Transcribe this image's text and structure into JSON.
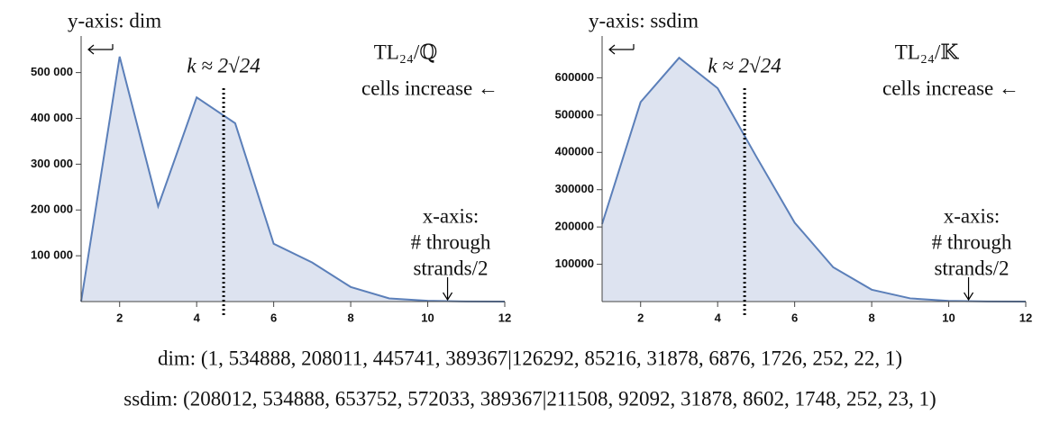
{
  "chart_data": [
    {
      "type": "area",
      "title": "TL₂₄/ℚ",
      "subtitle": "cells increase ←",
      "ylabel": "y-axis: dim",
      "xlabel": [
        "x-axis:",
        "# through",
        "strands/2"
      ],
      "vline": {
        "x": 4.7,
        "label": "k ≈ 2√24"
      },
      "x": [
        1,
        2,
        3,
        4,
        5,
        6,
        7,
        8,
        9,
        10,
        11,
        12
      ],
      "values": [
        1,
        534888,
        208011,
        445741,
        389367,
        126292,
        85216,
        31878,
        6876,
        1726,
        252,
        22
      ],
      "color": "#5b7fb9",
      "fill": "#dde3f0",
      "xlim": [
        1,
        12
      ],
      "ylim": [
        0,
        570000
      ],
      "xticks": [
        2,
        4,
        6,
        8,
        10,
        12
      ],
      "yticks": [
        {
          "value": 100000,
          "label": "100 000"
        },
        {
          "value": 200000,
          "label": "200 000"
        },
        {
          "value": 300000,
          "label": "300 000"
        },
        {
          "value": 400000,
          "label": "400 000"
        },
        {
          "value": 500000,
          "label": "500 000"
        }
      ]
    },
    {
      "type": "area",
      "title": "TL₂₄/𝕂",
      "subtitle": "cells increase ←",
      "ylabel": "y-axis: ssdim",
      "xlabel": [
        "x-axis:",
        "# through",
        "strands/2"
      ],
      "vline": {
        "x": 4.7,
        "label": "k ≈ 2√24"
      },
      "x": [
        1,
        2,
        3,
        4,
        5,
        6,
        7,
        8,
        9,
        10,
        11,
        12
      ],
      "values": [
        208012,
        534888,
        653752,
        572033,
        389367,
        211508,
        92092,
        31878,
        8602,
        1748,
        252,
        23
      ],
      "color": "#5b7fb9",
      "fill": "#dde3f0",
      "xlim": [
        1,
        12
      ],
      "ylim": [
        0,
        700000
      ],
      "xticks": [
        2,
        4,
        6,
        8,
        10,
        12
      ],
      "yticks": [
        100000,
        200000,
        300000,
        400000,
        500000,
        600000
      ]
    }
  ],
  "captions": [
    "dim: (1, 534888, 208011, 445741, 389367|126292, 85216, 31878, 6876, 1726, 252, 22, 1)",
    "ssdim: (208012, 534888, 653752, 572033, 389367|211508, 92092, 31878, 8602, 1748, 252, 23, 1)"
  ]
}
